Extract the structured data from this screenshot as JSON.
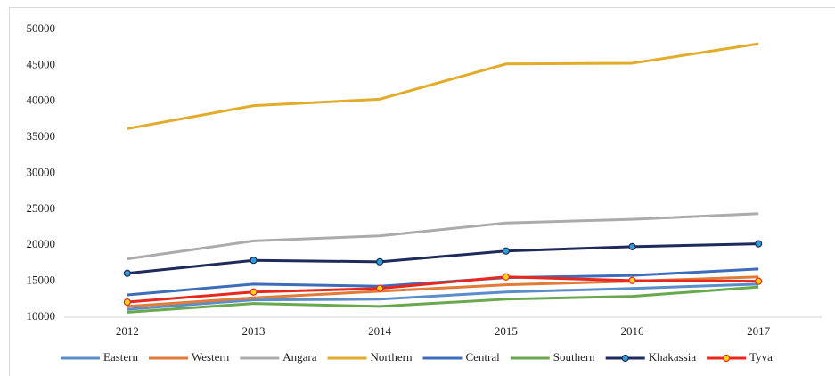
{
  "chart_data": {
    "type": "line",
    "categories": [
      "2012",
      "2013",
      "2014",
      "2015",
      "2016",
      "2017"
    ],
    "ylim": [
      10000,
      50000
    ],
    "yticks": [
      10000,
      15000,
      20000,
      25000,
      30000,
      35000,
      40000,
      45000,
      50000
    ],
    "legend": "bottom",
    "series": [
      {
        "name": "Eastern",
        "color": "#5b8ec9",
        "values": [
          11100,
          12400,
          12500,
          13500,
          14000,
          14600
        ]
      },
      {
        "name": "Western",
        "color": "#e07b39",
        "values": [
          11500,
          12700,
          13600,
          14500,
          15000,
          15600
        ]
      },
      {
        "name": "Angara",
        "color": "#ababab",
        "values": [
          18100,
          20600,
          21300,
          23100,
          23600,
          24400
        ]
      },
      {
        "name": "Northern",
        "color": "#e2ac2a",
        "values": [
          36200,
          39400,
          40300,
          45200,
          45300,
          48000
        ]
      },
      {
        "name": "Central",
        "color": "#3f6cb8",
        "values": [
          13100,
          14600,
          14300,
          15500,
          15800,
          16700
        ]
      },
      {
        "name": "Southern",
        "color": "#6aa84f",
        "values": [
          10700,
          11900,
          11500,
          12500,
          12900,
          14200
        ]
      },
      {
        "name": "Khakassia",
        "color": "#1f2a5c",
        "marker_color": "#2e9fd6",
        "values": [
          16100,
          17900,
          17700,
          19200,
          19800,
          20200
        ]
      },
      {
        "name": "Tyva",
        "color": "#e8281e",
        "marker_color": "#ffd21f",
        "values": [
          12100,
          13500,
          14000,
          15600,
          15100,
          15000
        ]
      }
    ]
  }
}
